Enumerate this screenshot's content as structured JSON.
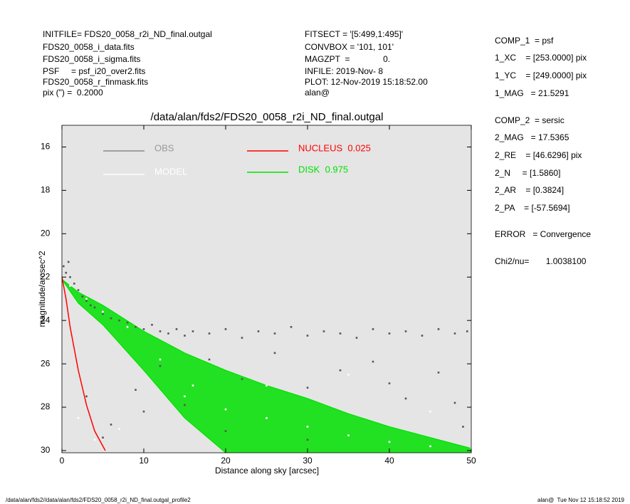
{
  "page": {
    "header_left": [
      "INITFILE= FDS20_0058_r2i_ND_final.outgal",
      "FDS20_0058_i_data.fits",
      "FDS20_0058_i_sigma.fits",
      "PSF     = psf_i20_over2.fits",
      "FDS20_0058_r_finmask.fits",
      "pix (\") =  0.2000"
    ],
    "header_middle": [
      "FITSECT = '[5:499,1:495]'",
      "CONVBOX = '101, 101'",
      "MAGZPT  =              0.",
      "INFILE: 2019-Nov- 8",
      "PLOT: 12-Nov-2019 15:18:52.00",
      "alan@"
    ],
    "header_right": [
      "COMP_1  = psf",
      "1_XC    = [253.0000] pix",
      "1_YC    = [249.0000] pix",
      "1_MAG   = 21.5291",
      "COMP_2  = sersic",
      "2_MAG   = 17.5365",
      "2_RE    = [46.6296] pix",
      "2_N     = [1.5860]",
      "2_AR    = [0.3824]",
      "2_PA    = [-57.5694]",
      "ERROR   = Convergence",
      "Chi2/nu=       1.0038100"
    ],
    "footer_left": "/data/alan/fds2//data/alan/fds2/FDS20_0058_r2i_ND_final.outgal_profile2",
    "footer_right": "alan@  Tue Nov 12 15:18:52 2019"
  },
  "chart_data": {
    "type": "scatter",
    "title": "/data/alan/fds2/FDS20_0058_r2i_ND_final.outgal",
    "x_label": "Distance along sky [arcsec]",
    "y_label": "magnitude/arcsec^2",
    "xlim": [
      0,
      50
    ],
    "xticks": [
      0,
      10,
      20,
      30,
      40,
      50
    ],
    "ylim": [
      30.1,
      15
    ],
    "yticks": [
      16,
      18,
      20,
      22,
      24,
      26,
      28,
      30
    ],
    "series": [
      {
        "name": "OBS",
        "color": "#555555",
        "kind": "points",
        "x": [
          0.2,
          0.5,
          0.8,
          1.0,
          1.5,
          2,
          2.5,
          3,
          3.5,
          4,
          5,
          6,
          7,
          8,
          9,
          10,
          11,
          12,
          13,
          14,
          15,
          16,
          18,
          20,
          22,
          24,
          26,
          28,
          30,
          32,
          34,
          36,
          38,
          40,
          42,
          44,
          46,
          48,
          49.5,
          3,
          6,
          9,
          12,
          15,
          18,
          22,
          26,
          30,
          34,
          38,
          42,
          46,
          49,
          5,
          10,
          20,
          30,
          40,
          48
        ],
        "values": [
          21.5,
          21.8,
          21.3,
          22.0,
          22.3,
          22.6,
          22.9,
          23.1,
          23.3,
          23.4,
          23.7,
          23.9,
          24.0,
          24.1,
          24.3,
          24.4,
          24.2,
          24.5,
          24.6,
          24.4,
          24.7,
          24.5,
          24.6,
          24.4,
          24.8,
          24.5,
          24.6,
          24.3,
          24.7,
          24.5,
          24.6,
          24.8,
          24.4,
          24.6,
          24.5,
          24.7,
          24.4,
          24.6,
          24.5,
          27.5,
          28.8,
          27.2,
          26.1,
          27.9,
          25.8,
          26.7,
          25.5,
          27.1,
          26.3,
          25.9,
          27.6,
          26.4,
          28.9,
          29.4,
          28.2,
          29.1,
          29.5,
          26.9,
          27.8
        ]
      },
      {
        "name": "MODEL",
        "color": "#ffffff",
        "kind": "points",
        "x": [
          1,
          3,
          5,
          8,
          12,
          16,
          20,
          25,
          30,
          35,
          40,
          45,
          50,
          2,
          4,
          7,
          15,
          25,
          35,
          45
        ],
        "values": [
          22.4,
          23.0,
          23.6,
          24.3,
          25.8,
          27.0,
          28.1,
          28.5,
          28.9,
          29.3,
          29.6,
          29.8,
          29.9,
          28.5,
          29.5,
          29.0,
          27.5,
          27.0,
          26.5,
          28.2
        ]
      },
      {
        "name": "NUCLEUS  0.025",
        "color": "#ff0000",
        "kind": "line",
        "x": [
          0,
          0.5,
          1,
          2,
          3,
          4,
          5.3
        ],
        "values": [
          22.0,
          23.0,
          24.3,
          26.3,
          27.9,
          29.1,
          30.0
        ]
      },
      {
        "name": "DISK  0.975",
        "color": "#00e000",
        "kind": "band",
        "x": [
          0,
          2,
          5,
          10,
          15,
          20,
          25,
          30,
          35,
          40,
          45,
          50
        ],
        "values": [
          22.1,
          22.7,
          23.3,
          24.5,
          25.5,
          26.3,
          27.0,
          27.6,
          28.3,
          28.9,
          29.4,
          29.9
        ],
        "values_low": [
          22.1,
          23.2,
          24.2,
          26.3,
          28.5,
          30.1,
          null,
          null,
          null,
          null,
          null,
          null
        ]
      }
    ]
  }
}
